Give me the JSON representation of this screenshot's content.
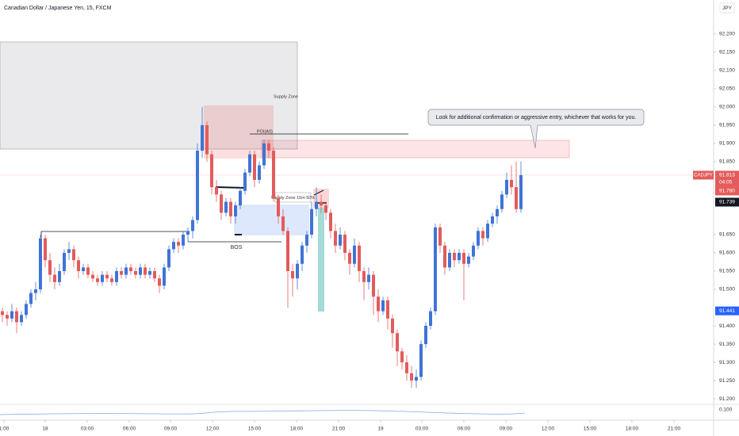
{
  "chart_data": {
    "type": "candlestick",
    "title": "Canadian Dollar / Japanese Yen, 15, FXCM",
    "currency": "JPY",
    "up_color": "#3f74d6",
    "down_color": "#e35b5b",
    "xlim": [
      -0.5,
      149.5
    ],
    "ylim": [
      91.185,
      92.293
    ],
    "xticks": [
      {
        "value": 0.33,
        "label": "1:00"
      },
      {
        "value": 9,
        "label": "18"
      },
      {
        "value": 17.83,
        "label": "03:00"
      },
      {
        "value": 26.67,
        "label": "06:00"
      },
      {
        "value": 35.33,
        "label": "09:00"
      },
      {
        "value": 44.17,
        "label": "12:00"
      },
      {
        "value": 53,
        "label": "15:00"
      },
      {
        "value": 61.83,
        "label": "18:00"
      },
      {
        "value": 70.67,
        "label": "21:00"
      },
      {
        "value": 79.5,
        "label": "19"
      },
      {
        "value": 88.17,
        "label": "03:00"
      },
      {
        "value": 97,
        "label": "06:00"
      },
      {
        "value": 105.83,
        "label": "09:00"
      },
      {
        "value": 114.67,
        "label": "12:00"
      },
      {
        "value": 123.5,
        "label": "15:00"
      },
      {
        "value": 132.33,
        "label": "18:00"
      },
      {
        "value": 141.17,
        "label": "21:00"
      }
    ],
    "yticks": [
      {
        "value": 92.2,
        "label": "92.200"
      },
      {
        "value": 92.15,
        "label": "92.150"
      },
      {
        "value": 92.1,
        "label": "92.100"
      },
      {
        "value": 92.05,
        "label": "92.050"
      },
      {
        "value": 92.0,
        "label": "92.000"
      },
      {
        "value": 91.95,
        "label": "91.950"
      },
      {
        "value": 91.9,
        "label": "91.900"
      },
      {
        "value": 91.85,
        "label": "91.850"
      },
      {
        "value": 91.65,
        "label": "91.650"
      },
      {
        "value": 91.6,
        "label": "91.600"
      },
      {
        "value": 91.55,
        "label": "91.550"
      },
      {
        "value": 91.5,
        "label": "91.500"
      },
      {
        "value": 91.4,
        "label": "91.400"
      },
      {
        "value": 91.35,
        "label": "91.350"
      },
      {
        "value": 91.3,
        "label": "91.300"
      },
      {
        "value": 91.25,
        "label": "91.250"
      },
      {
        "value": 91.2,
        "label": "91.200"
      }
    ],
    "symbol": "CADJPY",
    "countdown": "04:05",
    "price_tags": [
      {
        "value": 91.813,
        "label": "91.813",
        "color": "#e35b5b"
      },
      {
        "value": 91.78,
        "label": "91.780",
        "color": "#e35b5b"
      },
      {
        "value": 91.739,
        "label": "91.739",
        "color": "#131722"
      },
      {
        "value": 91.441,
        "label": "91.441",
        "color": "#2962ff"
      }
    ],
    "indicator_scale_label": "0.100",
    "annotations": {
      "supply_zone": "Supply Zone",
      "poi": "POI(A0)",
      "bos": "BOS",
      "supply_zone_15m": "Supply Zone 15m 50%",
      "callout": "Look for additional confirmation or aggressive entry, whichever that works for you."
    },
    "ohlc": [
      [
        91.44,
        91.45,
        91.41,
        91.43
      ],
      [
        91.43,
        91.44,
        91.4,
        91.42
      ],
      [
        91.42,
        91.46,
        91.41,
        91.44
      ],
      [
        91.44,
        91.45,
        91.38,
        91.41
      ],
      [
        91.41,
        91.44,
        91.4,
        91.43
      ],
      [
        91.43,
        91.47,
        91.42,
        91.46
      ],
      [
        91.46,
        91.5,
        91.45,
        91.49
      ],
      [
        91.49,
        91.52,
        91.47,
        91.5
      ],
      [
        91.5,
        91.65,
        91.49,
        91.64
      ],
      [
        91.64,
        91.65,
        91.56,
        91.58
      ],
      [
        91.58,
        91.6,
        91.52,
        91.54
      ],
      [
        91.54,
        91.56,
        91.5,
        91.52
      ],
      [
        91.52,
        91.57,
        91.51,
        91.55
      ],
      [
        91.55,
        91.61,
        91.54,
        91.6
      ],
      [
        91.6,
        91.63,
        91.58,
        91.61
      ],
      [
        91.61,
        91.62,
        91.56,
        91.58
      ],
      [
        91.58,
        91.59,
        91.53,
        91.55
      ],
      [
        91.55,
        91.57,
        91.54,
        91.56
      ],
      [
        91.56,
        91.57,
        91.53,
        91.54
      ],
      [
        91.54,
        91.55,
        91.52,
        91.53
      ],
      [
        91.53,
        91.54,
        91.51,
        91.52
      ],
      [
        91.52,
        91.55,
        91.51,
        91.54
      ],
      [
        91.54,
        91.55,
        91.52,
        91.53
      ],
      [
        91.53,
        91.54,
        91.51,
        91.52
      ],
      [
        91.52,
        91.56,
        91.51,
        91.55
      ],
      [
        91.55,
        91.56,
        91.53,
        91.54
      ],
      [
        91.54,
        91.57,
        91.53,
        91.56
      ],
      [
        91.56,
        91.57,
        91.54,
        91.55
      ],
      [
        91.55,
        91.56,
        91.53,
        91.54
      ],
      [
        91.54,
        91.57,
        91.53,
        91.56
      ],
      [
        91.56,
        91.57,
        91.53,
        91.54
      ],
      [
        91.54,
        91.56,
        91.53,
        91.55
      ],
      [
        91.55,
        91.56,
        91.52,
        91.53
      ],
      [
        91.53,
        91.54,
        91.49,
        91.51
      ],
      [
        91.51,
        91.57,
        91.5,
        91.56
      ],
      [
        91.56,
        91.62,
        91.55,
        91.61
      ],
      [
        91.61,
        91.64,
        91.6,
        91.63
      ],
      [
        91.63,
        91.64,
        91.6,
        91.62
      ],
      [
        91.62,
        91.66,
        91.61,
        91.65
      ],
      [
        91.65,
        91.67,
        91.63,
        91.66
      ],
      [
        91.66,
        91.7,
        91.64,
        91.69
      ],
      [
        91.69,
        91.9,
        91.68,
        91.88
      ],
      [
        91.88,
        92.0,
        91.86,
        91.95
      ],
      [
        91.95,
        91.96,
        91.85,
        91.87
      ],
      [
        91.87,
        91.88,
        91.76,
        91.78
      ],
      [
        91.78,
        91.8,
        91.74,
        91.76
      ],
      [
        91.76,
        91.77,
        91.69,
        91.71
      ],
      [
        91.71,
        91.75,
        91.7,
        91.74
      ],
      [
        91.74,
        91.75,
        91.68,
        91.7
      ],
      [
        91.7,
        91.74,
        91.68,
        91.73
      ],
      [
        91.73,
        91.78,
        91.72,
        91.77
      ],
      [
        91.77,
        91.83,
        91.76,
        91.82
      ],
      [
        91.82,
        91.88,
        91.81,
        91.87
      ],
      [
        91.87,
        91.88,
        91.78,
        91.8
      ],
      [
        91.8,
        91.85,
        91.79,
        91.84
      ],
      [
        91.84,
        91.91,
        91.83,
        91.9
      ],
      [
        91.9,
        91.91,
        91.86,
        91.88
      ],
      [
        91.88,
        91.89,
        91.74,
        91.75
      ],
      [
        91.75,
        91.76,
        91.68,
        91.7
      ],
      [
        91.7,
        91.72,
        91.65,
        91.66
      ],
      [
        91.66,
        91.67,
        91.45,
        91.55
      ],
      [
        91.55,
        91.57,
        91.48,
        91.53
      ],
      [
        91.53,
        91.58,
        91.5,
        91.57
      ],
      [
        91.57,
        91.63,
        91.55,
        91.62
      ],
      [
        91.62,
        91.66,
        91.6,
        91.65
      ],
      [
        91.65,
        91.74,
        91.64,
        91.72
      ],
      [
        91.72,
        91.78,
        91.7,
        91.74
      ],
      [
        91.74,
        91.76,
        91.71,
        91.73
      ],
      [
        91.73,
        91.74,
        91.69,
        91.71
      ],
      [
        91.71,
        91.72,
        91.64,
        91.66
      ],
      [
        91.66,
        91.68,
        91.6,
        91.62
      ],
      [
        91.62,
        91.67,
        91.61,
        91.65
      ],
      [
        91.65,
        91.66,
        91.58,
        91.6
      ],
      [
        91.6,
        91.61,
        91.54,
        91.57
      ],
      [
        91.57,
        91.64,
        91.56,
        91.62
      ],
      [
        91.62,
        91.63,
        91.52,
        91.55
      ],
      [
        91.55,
        91.56,
        91.47,
        91.52
      ],
      [
        91.52,
        91.56,
        91.5,
        91.54
      ],
      [
        91.54,
        91.55,
        91.43,
        91.48
      ],
      [
        91.48,
        91.5,
        91.41,
        91.44
      ],
      [
        91.44,
        91.48,
        91.43,
        91.47
      ],
      [
        91.47,
        91.48,
        91.39,
        91.42
      ],
      [
        91.42,
        91.43,
        91.34,
        91.38
      ],
      [
        91.38,
        91.39,
        91.29,
        91.33
      ],
      [
        91.33,
        91.34,
        91.28,
        91.3
      ],
      [
        91.3,
        91.32,
        91.25,
        91.27
      ],
      [
        91.27,
        91.29,
        91.23,
        91.25
      ],
      [
        91.25,
        91.28,
        91.23,
        91.26
      ],
      [
        91.26,
        91.36,
        91.25,
        91.35
      ],
      [
        91.35,
        91.41,
        91.34,
        91.4
      ],
      [
        91.4,
        91.45,
        91.39,
        91.44
      ],
      [
        91.44,
        91.68,
        91.43,
        91.67
      ],
      [
        91.67,
        91.68,
        91.6,
        91.62
      ],
      [
        91.62,
        91.63,
        91.54,
        91.56
      ],
      [
        91.56,
        91.61,
        91.55,
        91.6
      ],
      [
        91.6,
        91.61,
        91.56,
        91.58
      ],
      [
        91.58,
        91.61,
        91.57,
        91.6
      ],
      [
        91.6,
        91.61,
        91.47,
        91.57
      ],
      [
        91.57,
        91.6,
        91.56,
        91.59
      ],
      [
        91.59,
        91.63,
        91.58,
        91.62
      ],
      [
        91.62,
        91.67,
        91.61,
        91.66
      ],
      [
        91.66,
        91.67,
        91.62,
        91.64
      ],
      [
        91.64,
        91.69,
        91.63,
        91.68
      ],
      [
        91.68,
        91.71,
        91.67,
        91.7
      ],
      [
        91.7,
        91.73,
        91.68,
        91.72
      ],
      [
        91.72,
        91.77,
        91.71,
        91.76
      ],
      [
        91.76,
        91.82,
        91.75,
        91.8
      ],
      [
        91.8,
        91.84,
        91.76,
        91.78
      ],
      [
        91.78,
        91.85,
        91.71,
        91.72
      ],
      [
        91.72,
        91.85,
        91.71,
        91.813
      ]
    ]
  }
}
